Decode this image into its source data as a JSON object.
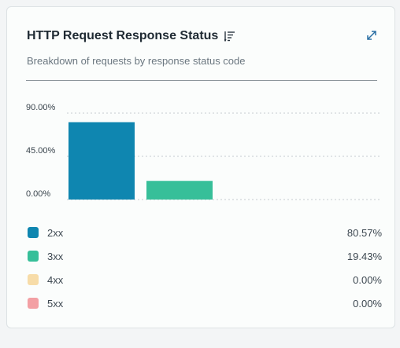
{
  "card": {
    "title": "HTTP Request Response Status",
    "subtitle": "Breakdown of requests by response status code",
    "icons": {
      "sort": "sort-lines-icon",
      "expand": "expand-arrows-icon"
    }
  },
  "chart_data": {
    "type": "bar",
    "categories": [
      "2xx",
      "3xx",
      "4xx",
      "5xx"
    ],
    "values": [
      80.57,
      19.43,
      0.0,
      0.0
    ],
    "value_labels": [
      "80.57%",
      "19.43%",
      "0.00%",
      "0.00%"
    ],
    "colors": [
      "#0f86b0",
      "#37bf99",
      "#f7dca8",
      "#f3a0a4"
    ],
    "yticks": [
      "90.00%",
      "45.00%",
      "0.00%"
    ],
    "ytick_values": [
      90,
      45,
      0
    ],
    "ylim": [
      0,
      90
    ],
    "grid": true,
    "legend": "bottom"
  }
}
